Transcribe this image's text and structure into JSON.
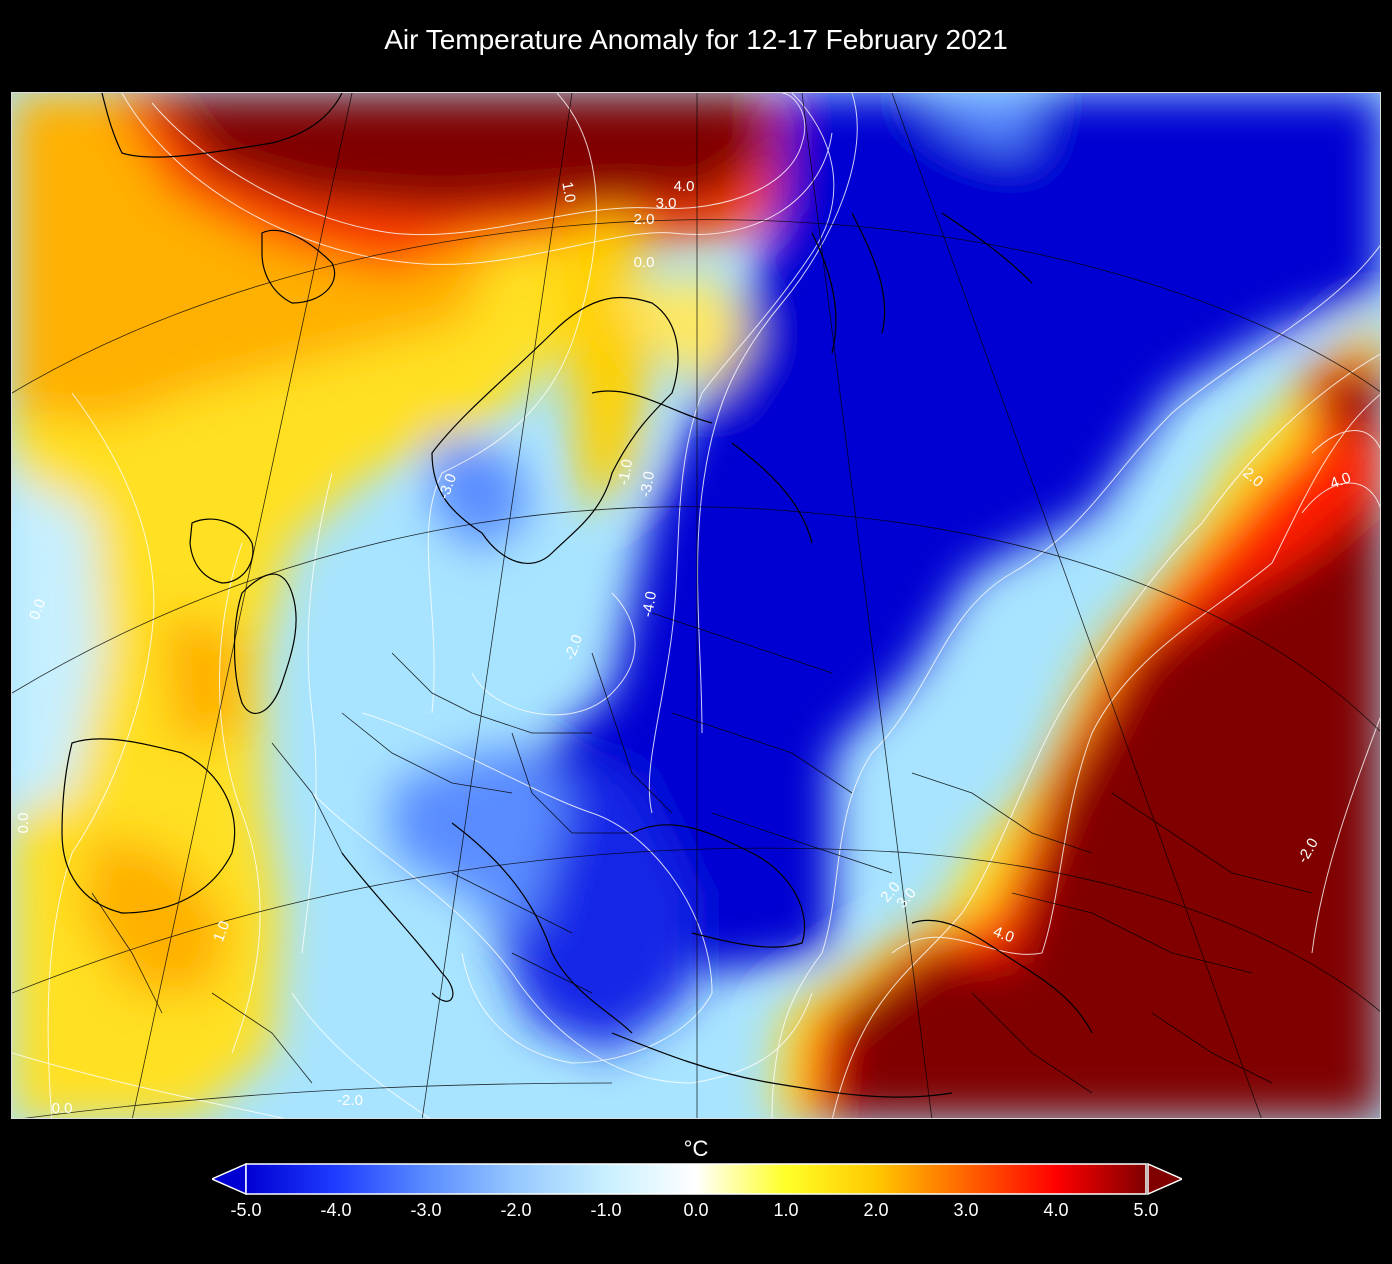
{
  "title": "Air Temperature Anomaly for 12-17 February 2021",
  "colorbar": {
    "unit": "°C",
    "min": -5.0,
    "max": 5.0,
    "extend": "both",
    "ticks": [
      "-5.0",
      "-4.0",
      "-3.0",
      "-2.0",
      "-1.0",
      "0.0",
      "1.0",
      "2.0",
      "3.0",
      "4.0",
      "5.0"
    ],
    "colors": [
      "#0000d2",
      "#1e3cff",
      "#5a8cff",
      "#96c8ff",
      "#c8f0ff",
      "#ffffff",
      "#ffff28",
      "#ffc800",
      "#ff6400",
      "#ff0000",
      "#800000"
    ],
    "under_color": "#0000d2",
    "over_color": "#800000"
  },
  "contour_labels": [
    "4.0",
    "3.0",
    "2.0",
    "0.0",
    "1.0",
    "-3.0",
    "-1.0",
    "-3.0",
    "-4.0",
    "-2.0",
    "2.0",
    "4.0",
    "0.0",
    "1.0",
    "-2.0",
    "0.0",
    "2.0",
    "3.0",
    "4.0",
    "-2.0",
    "0.0"
  ],
  "map": {
    "projection": "polar stereographic (Europe)",
    "lines": [
      "coastlines",
      "country borders",
      "graticule"
    ]
  }
}
